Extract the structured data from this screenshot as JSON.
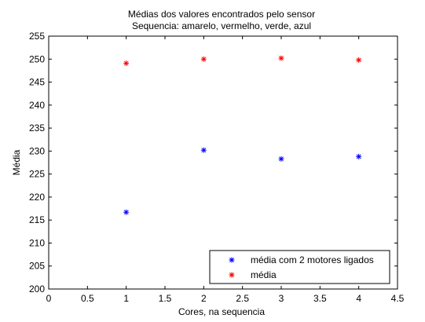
{
  "chart_data": {
    "type": "scatter",
    "title": "Médias dos valores encontrados pelo sensor",
    "subtitle": "Sequencia: amarelo, vermelho, verde, azul",
    "xlabel": "Cores, na sequencia",
    "ylabel": "Média",
    "xlim": [
      0,
      4.5
    ],
    "ylim": [
      200,
      255
    ],
    "xticks": [
      0,
      0.5,
      1,
      1.5,
      2,
      2.5,
      3,
      3.5,
      4,
      4.5
    ],
    "xtick_labels": [
      "0",
      "0.5",
      "1",
      "1.5",
      "2",
      "2.5",
      "3",
      "3.5",
      "4",
      "4.5"
    ],
    "yticks": [
      200,
      205,
      210,
      215,
      220,
      225,
      230,
      235,
      240,
      245,
      250,
      255
    ],
    "ytick_labels": [
      "200",
      "205",
      "210",
      "215",
      "220",
      "225",
      "230",
      "235",
      "240",
      "245",
      "250",
      "255"
    ],
    "grid": false,
    "legend_position": "bottom-right",
    "marker": "*",
    "series": [
      {
        "name": "média com 2 motores ligados",
        "color": "#0000ff",
        "x": [
          1,
          2,
          3,
          4
        ],
        "y": [
          216.7,
          230.2,
          228.3,
          228.8
        ]
      },
      {
        "name": "média",
        "color": "#ff0000",
        "x": [
          1,
          2,
          3,
          4
        ],
        "y": [
          249.1,
          250.0,
          250.2,
          249.8
        ]
      }
    ]
  }
}
